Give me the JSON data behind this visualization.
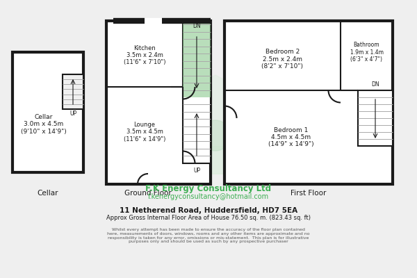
{
  "bg_color": "#efefef",
  "wall_color": "#1a1a1a",
  "green_color": "#3dae52",
  "watermark_light": "#d4ead6",
  "watermark_mid": "#b8d9bc",
  "title1": "11 Netherend Road, Huddersfield, HD7 5EA",
  "title2": "Approx Gross Internal Floor Area of House 76.50 sq. m. (823.43 sq. ft)",
  "disclaimer": "Whilst every attempt has been made to ensure the accuracy of the floor plan contained\nhere, measurements of doors, windows, rooms and any other items are approximate and no\nresponsibility is taken for any error, omissions or mis-statement.  This plan is for illustrative\npurposes only and should be used as such by any prospective purchaser",
  "brand_name": "F.K Energy Consultancy Ltd",
  "brand_email": "f.kenergyconsultancy@hotmail.com",
  "label_cellar": "Cellar",
  "label_ground": "Ground Floor",
  "label_first": "First Floor",
  "room_cellar": "Cellar\n3.0m x 4.5m\n(9'10\" x 14'9\")",
  "room_kitchen": "Kitchen\n3.5m x 2.4m\n(11'6\" x 7'10\")",
  "room_lounge": "Lounge\n3.5m x 4.5m\n(11'6\" x 14'9\")",
  "room_bed2": "Bedroom 2\n2.5m x 2.4m\n(8'2\" x 7'10\")",
  "room_bath": "Bathroom\n1.9m x 1.4m\n(6'3\" x 4'7\")",
  "room_bed1": "Bedroom 1\n4.5m x 4.5m\n(14'9\" x 14'9\")",
  "label_dn": "DN",
  "label_up": "UP"
}
